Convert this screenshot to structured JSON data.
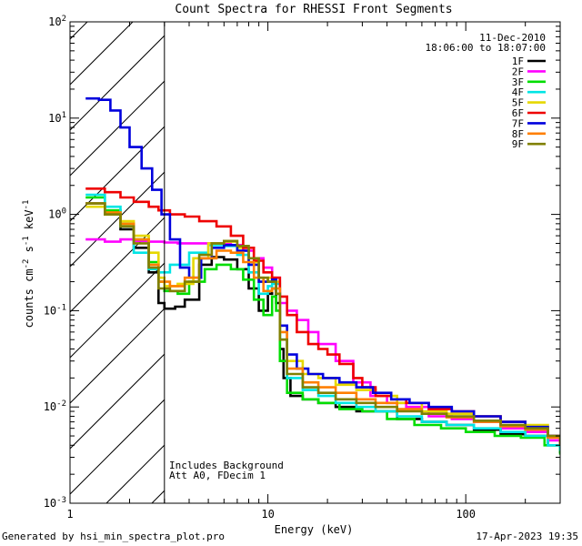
{
  "chart_data": {
    "type": "line",
    "title": "Count Spectra for RHESSI Front Segments",
    "xlabel": "Energy (keV)",
    "ylabel": "counts cm-2 s-1 keV-1",
    "xscale": "log",
    "yscale": "log",
    "xlim": [
      1,
      300
    ],
    "ylim": [
      0.001,
      100
    ],
    "x_tick_labels": [
      "1",
      "10",
      "100"
    ],
    "y_tick_labels": [
      {
        "base": "10",
        "exp": "2"
      },
      {
        "base": "10",
        "exp": "1"
      },
      {
        "base": "10",
        "exp": "0"
      },
      {
        "base": "10",
        "exp": "-1"
      },
      {
        "base": "10",
        "exp": "-2"
      },
      {
        "base": "10",
        "exp": "-3"
      }
    ],
    "date": "11-Dec-2010",
    "time_range": "18:06:00 to 18:07:00",
    "annotations": [
      "Includes Background",
      "Att A0, FDecim 1"
    ],
    "shaded_region": {
      "xmin": 1,
      "xmax": 3,
      "pattern": "diagonal hatch"
    },
    "series": [
      {
        "name": "1F",
        "color": "#000000",
        "points": [
          [
            1.2,
            1.3
          ],
          [
            1.5,
            1.0
          ],
          [
            1.8,
            0.7
          ],
          [
            2.1,
            0.45
          ],
          [
            2.5,
            0.25
          ],
          [
            2.8,
            0.12
          ],
          [
            3.0,
            0.105
          ],
          [
            3.4,
            0.11
          ],
          [
            3.8,
            0.13
          ],
          [
            4.5,
            0.3
          ],
          [
            5.2,
            0.36
          ],
          [
            6.0,
            0.34
          ],
          [
            7.0,
            0.27
          ],
          [
            8.0,
            0.17
          ],
          [
            9.0,
            0.1
          ],
          [
            10.0,
            0.15
          ],
          [
            10.5,
            0.17
          ],
          [
            11.0,
            0.12
          ],
          [
            11.5,
            0.04
          ],
          [
            12.0,
            0.02
          ],
          [
            13.0,
            0.013
          ],
          [
            15.0,
            0.012
          ],
          [
            18.0,
            0.011
          ],
          [
            22.0,
            0.01
          ],
          [
            28.0,
            0.009
          ],
          [
            35.0,
            0.009
          ],
          [
            45.0,
            0.0075
          ],
          [
            60.0,
            0.007
          ],
          [
            80.0,
            0.0065
          ],
          [
            110.0,
            0.0058
          ],
          [
            150.0,
            0.0052
          ],
          [
            200.0,
            0.005
          ],
          [
            260.0,
            0.004
          ],
          [
            300.0,
            0.0033
          ]
        ]
      },
      {
        "name": "2F",
        "color": "#ff00ff",
        "points": [
          [
            1.2,
            0.55
          ],
          [
            1.5,
            0.52
          ],
          [
            1.8,
            0.55
          ],
          [
            2.1,
            0.53
          ],
          [
            2.5,
            0.52
          ],
          [
            3.0,
            0.51
          ],
          [
            3.5,
            0.5
          ],
          [
            4.5,
            0.5
          ],
          [
            5.5,
            0.5
          ],
          [
            6.5,
            0.48
          ],
          [
            7.5,
            0.42
          ],
          [
            8.5,
            0.35
          ],
          [
            9.5,
            0.28
          ],
          [
            10.5,
            0.22
          ],
          [
            11.5,
            0.12
          ],
          [
            12.5,
            0.1
          ],
          [
            14.0,
            0.08
          ],
          [
            16.0,
            0.06
          ],
          [
            18.0,
            0.045
          ],
          [
            22.0,
            0.03
          ],
          [
            27.0,
            0.018
          ],
          [
            33.0,
            0.013
          ],
          [
            40.0,
            0.011
          ],
          [
            50.0,
            0.01
          ],
          [
            65.0,
            0.008
          ],
          [
            85.0,
            0.0075
          ],
          [
            110.0,
            0.007
          ],
          [
            150.0,
            0.006
          ],
          [
            200.0,
            0.0055
          ],
          [
            260.0,
            0.0045
          ],
          [
            300.0,
            0.004
          ]
        ]
      },
      {
        "name": "3F",
        "color": "#00dd00",
        "points": [
          [
            1.2,
            1.5
          ],
          [
            1.5,
            1.1
          ],
          [
            1.8,
            0.8
          ],
          [
            2.1,
            0.55
          ],
          [
            2.5,
            0.32
          ],
          [
            2.8,
            0.2
          ],
          [
            3.0,
            0.16
          ],
          [
            3.5,
            0.15
          ],
          [
            4.0,
            0.2
          ],
          [
            4.8,
            0.27
          ],
          [
            5.5,
            0.3
          ],
          [
            6.5,
            0.27
          ],
          [
            7.5,
            0.21
          ],
          [
            8.5,
            0.13
          ],
          [
            9.5,
            0.09
          ],
          [
            10.5,
            0.14
          ],
          [
            11.0,
            0.1
          ],
          [
            11.5,
            0.03
          ],
          [
            12.5,
            0.014
          ],
          [
            15.0,
            0.012
          ],
          [
            18.0,
            0.011
          ],
          [
            23.0,
            0.0095
          ],
          [
            30.0,
            0.009
          ],
          [
            40.0,
            0.0075
          ],
          [
            55.0,
            0.0065
          ],
          [
            75.0,
            0.006
          ],
          [
            100.0,
            0.0055
          ],
          [
            140.0,
            0.005
          ],
          [
            190.0,
            0.0048
          ],
          [
            250.0,
            0.004
          ],
          [
            300.0,
            0.0032
          ]
        ]
      },
      {
        "name": "4F",
        "color": "#00e5e5",
        "points": [
          [
            1.2,
            1.6
          ],
          [
            1.5,
            1.2
          ],
          [
            1.8,
            0.75
          ],
          [
            2.1,
            0.4
          ],
          [
            2.5,
            0.27
          ],
          [
            2.8,
            0.25
          ],
          [
            3.2,
            0.3
          ],
          [
            4.0,
            0.4
          ],
          [
            5.0,
            0.48
          ],
          [
            6.0,
            0.47
          ],
          [
            7.0,
            0.38
          ],
          [
            8.0,
            0.25
          ],
          [
            9.0,
            0.15
          ],
          [
            10.0,
            0.18
          ],
          [
            10.5,
            0.19
          ],
          [
            11.5,
            0.05
          ],
          [
            12.5,
            0.02
          ],
          [
            15.0,
            0.015
          ],
          [
            18.0,
            0.013
          ],
          [
            22.0,
            0.011
          ],
          [
            28.0,
            0.01
          ],
          [
            35.0,
            0.009
          ],
          [
            45.0,
            0.008
          ],
          [
            60.0,
            0.007
          ],
          [
            80.0,
            0.0065
          ],
          [
            110.0,
            0.006
          ],
          [
            150.0,
            0.0055
          ],
          [
            200.0,
            0.005
          ],
          [
            260.0,
            0.004
          ],
          [
            300.0,
            0.0035
          ]
        ]
      },
      {
        "name": "5F",
        "color": "#e6d800",
        "points": [
          [
            1.2,
            1.2
          ],
          [
            1.5,
            1.0
          ],
          [
            1.8,
            0.85
          ],
          [
            2.1,
            0.6
          ],
          [
            2.5,
            0.4
          ],
          [
            2.8,
            0.22
          ],
          [
            3.0,
            0.18
          ],
          [
            3.5,
            0.19
          ],
          [
            4.2,
            0.35
          ],
          [
            5.0,
            0.5
          ],
          [
            6.0,
            0.52
          ],
          [
            7.0,
            0.45
          ],
          [
            8.0,
            0.32
          ],
          [
            9.0,
            0.2
          ],
          [
            10.0,
            0.22
          ],
          [
            10.8,
            0.2
          ],
          [
            11.5,
            0.07
          ],
          [
            12.5,
            0.03
          ],
          [
            15.0,
            0.022
          ],
          [
            18.0,
            0.02
          ],
          [
            22.0,
            0.017
          ],
          [
            28.0,
            0.015
          ],
          [
            35.0,
            0.013
          ],
          [
            45.0,
            0.011
          ],
          [
            60.0,
            0.009
          ],
          [
            80.0,
            0.0085
          ],
          [
            110.0,
            0.008
          ],
          [
            150.0,
            0.007
          ],
          [
            200.0,
            0.0065
          ],
          [
            260.0,
            0.005
          ],
          [
            300.0,
            0.0045
          ]
        ]
      },
      {
        "name": "6F",
        "color": "#ee0000",
        "points": [
          [
            1.2,
            1.85
          ],
          [
            1.5,
            1.7
          ],
          [
            1.8,
            1.5
          ],
          [
            2.1,
            1.35
          ],
          [
            2.5,
            1.2
          ],
          [
            2.8,
            1.1
          ],
          [
            3.2,
            1.0
          ],
          [
            3.8,
            0.95
          ],
          [
            4.5,
            0.85
          ],
          [
            5.5,
            0.75
          ],
          [
            6.5,
            0.6
          ],
          [
            7.5,
            0.45
          ],
          [
            8.5,
            0.33
          ],
          [
            9.5,
            0.25
          ],
          [
            10.5,
            0.22
          ],
          [
            11.5,
            0.14
          ],
          [
            12.5,
            0.09
          ],
          [
            14.0,
            0.06
          ],
          [
            16.0,
            0.045
          ],
          [
            18.0,
            0.04
          ],
          [
            20.0,
            0.035
          ],
          [
            23.0,
            0.028
          ],
          [
            27.0,
            0.02
          ],
          [
            30.0,
            0.016
          ],
          [
            35.0,
            0.013
          ],
          [
            42.0,
            0.012
          ],
          [
            50.0,
            0.011
          ],
          [
            65.0,
            0.0095
          ],
          [
            85.0,
            0.009
          ],
          [
            110.0,
            0.008
          ],
          [
            150.0,
            0.007
          ],
          [
            200.0,
            0.006
          ],
          [
            260.0,
            0.005
          ],
          [
            300.0,
            0.0042
          ]
        ]
      },
      {
        "name": "7F",
        "color": "#0000dd",
        "points": [
          [
            1.2,
            16.0
          ],
          [
            1.4,
            15.5
          ],
          [
            1.6,
            12.0
          ],
          [
            1.8,
            8.0
          ],
          [
            2.0,
            5.0
          ],
          [
            2.3,
            3.0
          ],
          [
            2.6,
            1.8
          ],
          [
            2.9,
            1.0
          ],
          [
            3.2,
            0.55
          ],
          [
            3.6,
            0.28
          ],
          [
            4.0,
            0.22
          ],
          [
            4.6,
            0.35
          ],
          [
            5.2,
            0.45
          ],
          [
            6.0,
            0.48
          ],
          [
            7.0,
            0.42
          ],
          [
            8.0,
            0.3
          ],
          [
            9.0,
            0.2
          ],
          [
            10.0,
            0.2
          ],
          [
            10.5,
            0.21
          ],
          [
            11.0,
            0.15
          ],
          [
            11.5,
            0.07
          ],
          [
            12.5,
            0.035
          ],
          [
            14.0,
            0.025
          ],
          [
            16.0,
            0.022
          ],
          [
            19.0,
            0.02
          ],
          [
            23.0,
            0.018
          ],
          [
            28.0,
            0.016
          ],
          [
            34.0,
            0.014
          ],
          [
            42.0,
            0.012
          ],
          [
            52.0,
            0.011
          ],
          [
            65.0,
            0.01
          ],
          [
            85.0,
            0.009
          ],
          [
            110.0,
            0.008
          ],
          [
            150.0,
            0.007
          ],
          [
            200.0,
            0.0062
          ],
          [
            260.0,
            0.005
          ],
          [
            300.0,
            0.0042
          ]
        ]
      },
      {
        "name": "8F",
        "color": "#ff7f00",
        "points": [
          [
            1.2,
            1.3
          ],
          [
            1.5,
            1.05
          ],
          [
            1.8,
            0.8
          ],
          [
            2.1,
            0.55
          ],
          [
            2.5,
            0.3
          ],
          [
            2.8,
            0.2
          ],
          [
            3.2,
            0.18
          ],
          [
            3.8,
            0.22
          ],
          [
            4.5,
            0.35
          ],
          [
            5.5,
            0.42
          ],
          [
            6.5,
            0.4
          ],
          [
            7.5,
            0.32
          ],
          [
            8.5,
            0.22
          ],
          [
            9.5,
            0.16
          ],
          [
            10.5,
            0.17
          ],
          [
            11.5,
            0.06
          ],
          [
            12.5,
            0.025
          ],
          [
            15.0,
            0.018
          ],
          [
            18.0,
            0.016
          ],
          [
            22.0,
            0.014
          ],
          [
            28.0,
            0.012
          ],
          [
            35.0,
            0.011
          ],
          [
            45.0,
            0.0095
          ],
          [
            60.0,
            0.0085
          ],
          [
            80.0,
            0.0078
          ],
          [
            110.0,
            0.007
          ],
          [
            150.0,
            0.0063
          ],
          [
            200.0,
            0.0058
          ],
          [
            260.0,
            0.0048
          ],
          [
            300.0,
            0.004
          ]
        ]
      },
      {
        "name": "9F",
        "color": "#808000",
        "points": [
          [
            1.2,
            1.3
          ],
          [
            1.5,
            1.0
          ],
          [
            1.8,
            0.75
          ],
          [
            2.1,
            0.5
          ],
          [
            2.5,
            0.28
          ],
          [
            2.8,
            0.17
          ],
          [
            3.2,
            0.16
          ],
          [
            3.8,
            0.2
          ],
          [
            4.5,
            0.38
          ],
          [
            5.2,
            0.5
          ],
          [
            6.0,
            0.53
          ],
          [
            7.0,
            0.47
          ],
          [
            8.0,
            0.35
          ],
          [
            9.0,
            0.22
          ],
          [
            10.0,
            0.2
          ],
          [
            11.0,
            0.15
          ],
          [
            11.5,
            0.05
          ],
          [
            12.5,
            0.022
          ],
          [
            15.0,
            0.016
          ],
          [
            18.0,
            0.014
          ],
          [
            22.0,
            0.012
          ],
          [
            28.0,
            0.011
          ],
          [
            35.0,
            0.01
          ],
          [
            45.0,
            0.009
          ],
          [
            60.0,
            0.0085
          ],
          [
            80.0,
            0.008
          ],
          [
            110.0,
            0.0072
          ],
          [
            150.0,
            0.0065
          ],
          [
            200.0,
            0.006
          ],
          [
            260.0,
            0.005
          ],
          [
            300.0,
            0.004
          ]
        ]
      }
    ]
  },
  "footer": {
    "generated_by": "Generated by hsi_min_spectra_plot.pro",
    "timestamp": "17-Apr-2023 19:35"
  }
}
